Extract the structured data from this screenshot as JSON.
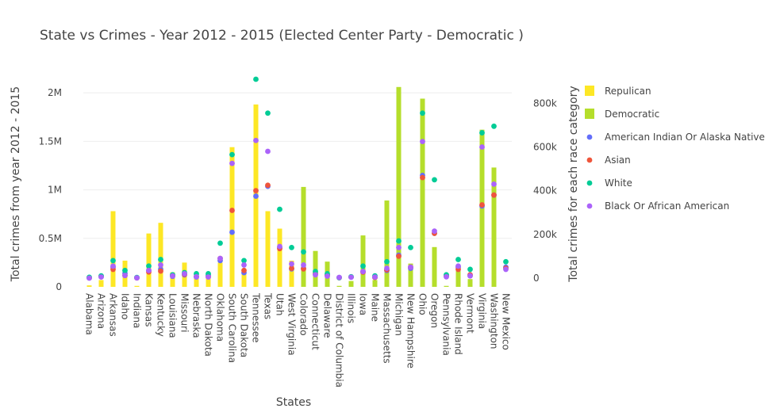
{
  "chart_data": {
    "type": "bar",
    "title": "State vs Crimes - Year 2012 - 2015 (Elected Center Party - Democratic )",
    "xlabel": "States",
    "ylabel": "Total crimes from year 2012 - 2015",
    "y2label": "Total crimes for each race category",
    "categories": [
      "Alabama",
      "Arizona",
      "Arkansas",
      "Idaho",
      "Indiana",
      "Kansas",
      "Kentucky",
      "Louisiana",
      "Missouri",
      "Nebraska",
      "North Dakota",
      "Oklahoma",
      "South Carolina",
      "South Dakota",
      "Tennessee",
      "Texas",
      "Utah",
      "West Virginia",
      "Colorado",
      "Connecticut",
      "Delaware",
      "District of Columbia",
      "Illinois",
      "Iowa",
      "Maine",
      "Massachusetts",
      "Michigan",
      "New Hampshire",
      "Ohio",
      "Oregon",
      "Pennsylvania",
      "Rhode Island",
      "Vermont",
      "Virginia",
      "Washington",
      "New Mexico"
    ],
    "yticks": [
      "0",
      "0.5M",
      "1M",
      "1.5M",
      "2M"
    ],
    "ytick_values": [
      0,
      500000,
      1000000,
      1500000,
      2000000
    ],
    "ylim": [
      0,
      2140000
    ],
    "y2ticks": [
      "0",
      "200k",
      "400k",
      "600k",
      "800k"
    ],
    "y2tick_values": [
      0,
      200000,
      400000,
      600000,
      800000
    ],
    "y2lim": [
      -40000,
      910000
    ],
    "grid": true,
    "legend_position": "right",
    "bar_series": [
      {
        "name": "Repulican",
        "color": "#fde725",
        "values": [
          15000,
          70000,
          780000,
          270000,
          10000,
          550000,
          660000,
          150000,
          250000,
          90000,
          130000,
          250000,
          1440000,
          150000,
          1880000,
          780000,
          600000,
          270000,
          null,
          null,
          null,
          null,
          null,
          null,
          null,
          null,
          null,
          null,
          null,
          null,
          null,
          null,
          null,
          null,
          null,
          null
        ]
      },
      {
        "name": "Democratic",
        "color": "#b5de2b",
        "values": [
          null,
          null,
          null,
          null,
          null,
          null,
          null,
          null,
          null,
          null,
          null,
          null,
          null,
          null,
          null,
          null,
          null,
          null,
          1030000,
          370000,
          260000,
          10000,
          60000,
          530000,
          70000,
          890000,
          2060000,
          240000,
          1940000,
          410000,
          10000,
          200000,
          80000,
          1620000,
          1230000,
          null
        ]
      }
    ],
    "scatter_series": [
      {
        "name": "American Indian Or Alaska Native",
        "color": "#636efa",
        "values": [
          1000,
          7000,
          50000,
          22000,
          2000,
          35000,
          40000,
          8000,
          15000,
          5000,
          12000,
          80000,
          210000,
          25000,
          375000,
          420000,
          140000,
          42000,
          45000,
          18000,
          12000,
          3000,
          5000,
          30000,
          3000,
          35000,
          105000,
          45000,
          470000,
          205000,
          8000,
          50000,
          12000,
          330000,
          380000,
          50000
        ]
      },
      {
        "name": "Asian",
        "color": "#ef553b",
        "values": [
          2000,
          8000,
          40000,
          12000,
          1000,
          28000,
          32000,
          12000,
          17000,
          8000,
          6000,
          90000,
          310000,
          35000,
          400000,
          425000,
          135000,
          45000,
          42000,
          22000,
          14000,
          2000,
          5000,
          27000,
          3000,
          38000,
          100000,
          50000,
          460000,
          205000,
          10000,
          40000,
          15000,
          335000,
          380000,
          45000
        ]
      },
      {
        "name": "White",
        "color": "#00cc96",
        "values": [
          4000,
          10000,
          80000,
          35000,
          3000,
          55000,
          85000,
          15000,
          25000,
          20000,
          20000,
          160000,
          565000,
          80000,
          910000,
          755000,
          315000,
          140000,
          120000,
          30000,
          20000,
          2000,
          6000,
          55000,
          10000,
          75000,
          170000,
          140000,
          755000,
          450000,
          15000,
          85000,
          40000,
          665000,
          695000,
          75000
        ]
      },
      {
        "name": "Black Or African American",
        "color": "#ab63fa",
        "values": [
          0,
          5000,
          55000,
          12000,
          1000,
          35000,
          60000,
          10000,
          20000,
          6000,
          5000,
          90000,
          525000,
          60000,
          630000,
          580000,
          145000,
          65000,
          60000,
          15000,
          9000,
          3000,
          4000,
          30000,
          5000,
          45000,
          140000,
          50000,
          625000,
          215000,
          6000,
          55000,
          10000,
          600000,
          430000,
          40000
        ]
      }
    ]
  }
}
